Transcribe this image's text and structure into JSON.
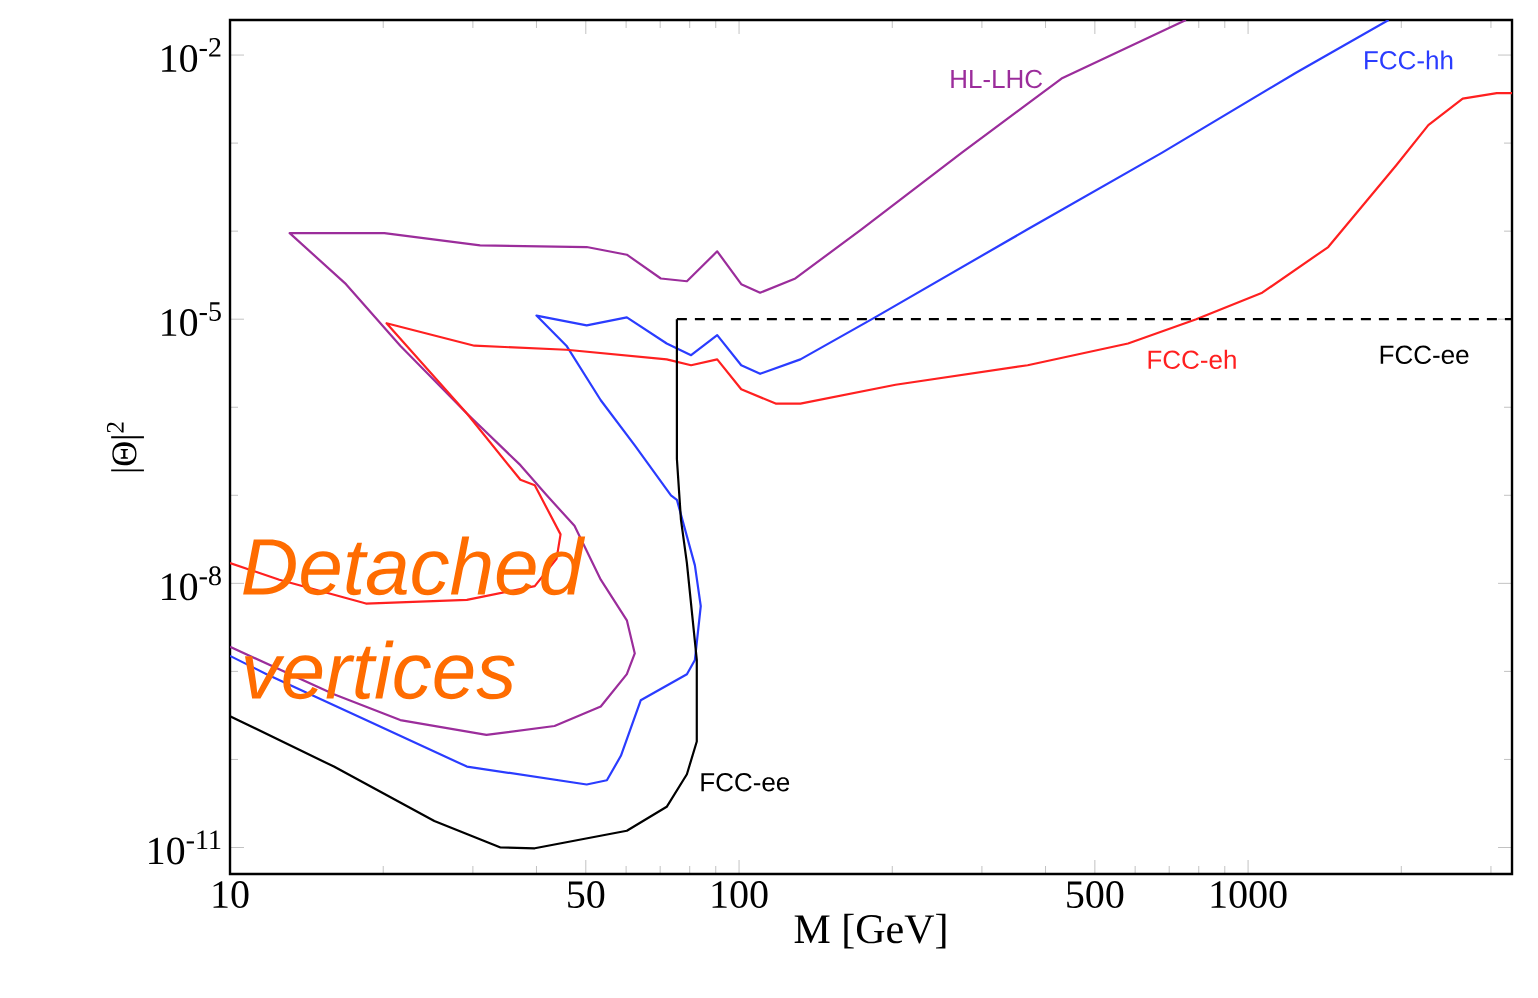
{
  "chart_data": {
    "type": "line",
    "log": "xy",
    "xlabel": "M [GeV]",
    "ylabel": "|Θ|$^{2}$",
    "xlim": [
      10,
      3300
    ],
    "ylim": [
      5e-12,
      0.025
    ],
    "xticks": [
      10,
      50,
      100,
      500,
      1000,
      {
        "value": 20,
        "label": null
      },
      {
        "value": 30,
        "label": null
      },
      {
        "value": 40,
        "label": null
      },
      {
        "value": 60,
        "label": null
      },
      {
        "value": 70,
        "label": null
      },
      {
        "value": 80,
        "label": null
      },
      {
        "value": 90,
        "label": null
      },
      {
        "value": 200,
        "label": null
      },
      {
        "value": 300,
        "label": null
      },
      {
        "value": 400,
        "label": null
      },
      {
        "value": 600,
        "label": null
      },
      {
        "value": 700,
        "label": null
      },
      {
        "value": 800,
        "label": null
      },
      {
        "value": 900,
        "label": null
      },
      {
        "value": 2000,
        "label": null
      },
      {
        "value": 3000,
        "label": null
      }
    ],
    "yticks": [
      {
        "value": 1e-11,
        "label": "10$^{-11}$"
      },
      {
        "value": 1e-08,
        "label": "10$^{-8}$"
      },
      {
        "value": 1e-05,
        "label": "10$^{-5}$"
      },
      {
        "value": 0.01,
        "label": "10$^{-2}$"
      },
      {
        "value": 1e-10,
        "label": null
      },
      {
        "value": 1e-09,
        "label": null
      },
      {
        "value": 1e-07,
        "label": null
      },
      {
        "value": 1e-06,
        "label": null
      },
      {
        "value": 0.0001,
        "label": null
      },
      {
        "value": 0.001,
        "label": null
      }
    ],
    "annotations": [
      "Detached vertices"
    ],
    "series": [
      {
        "name": "HL-LHC",
        "color": "#9b2d9b",
        "line_style": "solid",
        "x": [
          10,
          16.0,
          21.6,
          31.9,
          43.4,
          53.5,
          60.2,
          62.4,
          60.2,
          53.5,
          47.5,
          41.9,
          37.2,
          29.2,
          21.6,
          16.9,
          13.1,
          20.1,
          31.0,
          50.2,
          60.2,
          70.2,
          79.0,
          90.6,
          101,
          110,
          129,
          174,
          274,
          430,
          755
        ],
        "values": [
          1.9e-09,
          5.5e-10,
          2.8e-10,
          1.9e-10,
          2.4e-10,
          4e-10,
          9.3e-10,
          1.6e-09,
          3.8e-09,
          1.1e-08,
          4.5e-08,
          1e-07,
          2.2e-07,
          8.5e-07,
          5e-06,
          2.5e-05,
          9.5e-05,
          9.5e-05,
          6.9e-05,
          6.6e-05,
          5.4e-05,
          2.9e-05,
          2.7e-05,
          5.9e-05,
          2.5e-05,
          2e-05,
          2.9e-05,
          0.000105,
          0.00078,
          0.0054,
          0.025
        ]
      },
      {
        "name": "FCC-hh",
        "color": "#2a3cff",
        "line_style": "solid",
        "x": [
          10,
          11.8,
          18.5,
          29.2,
          50.2,
          55.0,
          58.6,
          64.1,
          79.0,
          81.9,
          84.1,
          81.9,
          75.5,
          73.5,
          62.4,
          53.5,
          45.8,
          40.0,
          50.2,
          60.2,
          72.1,
          80.5,
          90.6,
          101,
          110,
          132,
          185,
          369,
          678,
          1242,
          1888
        ],
        "values": [
          1.5e-09,
          9.3e-10,
          2.8e-10,
          8.3e-11,
          5.2e-11,
          5.8e-11,
          1.1e-10,
          4.7e-10,
          9.3e-10,
          1.35e-09,
          5.5e-09,
          1.6e-08,
          8.9e-08,
          1e-07,
          3.7e-07,
          1.2e-06,
          5e-06,
          1.1e-05,
          8.5e-06,
          1.05e-05,
          5.3e-06,
          3.9e-06,
          6.6e-06,
          3e-06,
          2.4e-06,
          3.5e-06,
          1.05e-05,
          0.000105,
          0.00078,
          0.0063,
          0.025
        ]
      },
      {
        "name": "FCC-eh",
        "color": "#ff2020",
        "line_style": "solid",
        "x": [
          10,
          12.5,
          18.5,
          29.2,
          39.7,
          43.8,
          44.6,
          39.7,
          37.2,
          29.2,
          20.3,
          30.2,
          45.8,
          72.1,
          80.5,
          90.6,
          101,
          118,
          132,
          203,
          369,
          581,
          791,
          1066,
          1437,
          1955,
          2260,
          2640,
          3080,
          3300
        ],
        "values": [
          1.7e-08,
          1.1e-08,
          5.9e-09,
          6.5e-09,
          9.3e-09,
          1.9e-08,
          3.6e-08,
          1.3e-07,
          1.5e-07,
          8.5e-07,
          9e-06,
          5e-06,
          4.5e-06,
          3.5e-06,
          3e-06,
          3.5e-06,
          1.6e-06,
          1.1e-06,
          1.1e-06,
          1.8e-06,
          3e-06,
          5.3e-06,
          1e-05,
          2e-05,
          6.6e-05,
          0.00056,
          0.0016,
          0.0032,
          0.0037,
          0.0037
        ]
      },
      {
        "name": "FCC-ee",
        "color": "#000000",
        "line_style": "dashed",
        "x": [
          75.5,
          3300
        ],
        "values": [
          1e-05,
          1e-05
        ]
      },
      {
        "name": "FCC-ee",
        "color": "#000000",
        "line_style": "solid",
        "x": [
          10,
          16.0,
          25.2,
          34.0,
          39.7,
          60.2,
          72.1,
          79.0,
          82.6,
          82.6,
          79.0,
          76.9,
          75.5,
          75.5
        ],
        "values": [
          3.1e-10,
          8.3e-11,
          2e-11,
          1e-11,
          9.8e-12,
          1.55e-11,
          2.9e-11,
          6.8e-11,
          1.6e-10,
          1.35e-09,
          1.7e-08,
          5.3e-08,
          2.6e-07,
          1e-05
        ]
      }
    ]
  }
}
